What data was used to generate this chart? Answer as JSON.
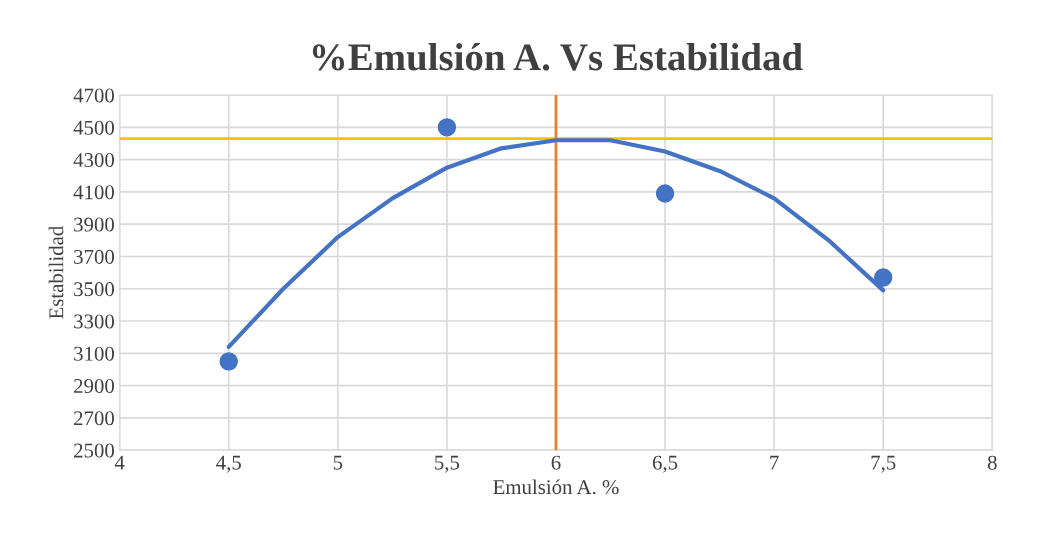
{
  "chart_data": {
    "type": "scatter",
    "title": "%Emulsión A. Vs Estabilidad",
    "xlabel": "Emulsión A. %",
    "ylabel": "Estabilidad",
    "xlim": [
      4,
      8
    ],
    "xticks": [
      4,
      {
        "value": 4.5,
        "label": "4,5"
      },
      5,
      {
        "value": 5.5,
        "label": "5,5"
      },
      6,
      {
        "value": 6.5,
        "label": "6,5"
      },
      7,
      {
        "value": 7.5,
        "label": "7,5"
      },
      8
    ],
    "ylim": [
      2500,
      4700
    ],
    "yticks": [
      2500,
      2700,
      2900,
      3100,
      3300,
      3500,
      3700,
      3900,
      4100,
      4300,
      4500,
      4700
    ],
    "grid": true,
    "legend": false,
    "series": [
      {
        "color": "#4472c4",
        "marker": "circle",
        "x": [
          4.5,
          5.5,
          6.5,
          7.5
        ],
        "values": [
          3050,
          4500,
          4090,
          3570
        ]
      },
      {
        "type": "line",
        "color": "#4472c4",
        "marker": "none",
        "line_style": "solid",
        "x": [
          4.5,
          4.75,
          5,
          5.25,
          5.5,
          5.75,
          6,
          6.25,
          6.5,
          6.75,
          7,
          7.25,
          7.5
        ],
        "values": [
          3140,
          3500,
          3820,
          4060,
          4250,
          4370,
          4420,
          4420,
          4350,
          4230,
          4060,
          3800,
          3490
        ]
      }
    ],
    "ref_lines": [
      {
        "axis": "y",
        "value": 4430,
        "color": "#ffc000"
      },
      {
        "axis": "x",
        "value": 6,
        "color": "#ed7d31"
      }
    ]
  }
}
